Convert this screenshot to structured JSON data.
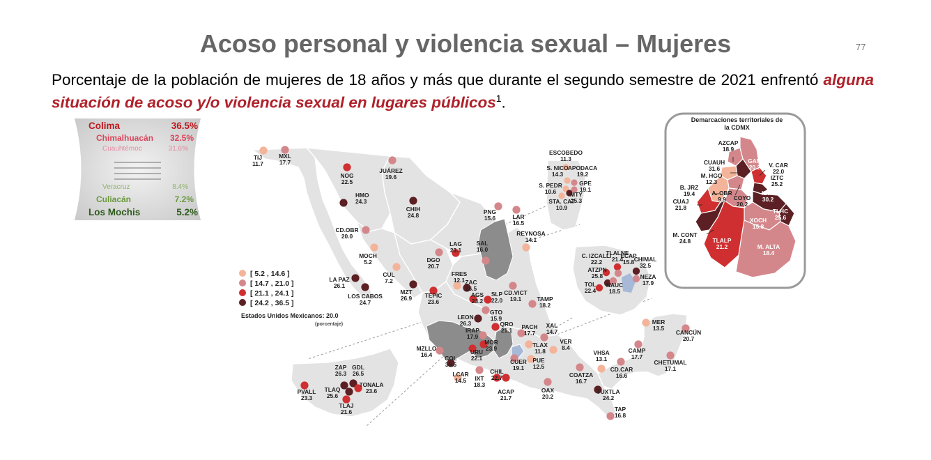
{
  "header": {
    "title": "Acoso personal y violencia sexual – Mujeres",
    "page_number": "77"
  },
  "subtitle": {
    "text_before": "Porcentaje de la población de mujeres de 18 años y más que durante el segundo semestre de 2021 enfrentó ",
    "emphasis": "alguna situación de acoso y/o violencia sexual en lugares públicos",
    "superscript": "1",
    "text_after": "."
  },
  "ranking": {
    "top": [
      {
        "name": "Colima",
        "value": "36.5%"
      },
      {
        "name": "Chimalhuacán",
        "value": "32.5%"
      },
      {
        "name": "Cuauhtémoc",
        "value": "31.6%"
      }
    ],
    "bottom": [
      {
        "name": "Veracruz",
        "value": "8.4%"
      },
      {
        "name": "Culiacán",
        "value": "7.2%"
      },
      {
        "name": "Los Mochis",
        "value": "5.2%"
      }
    ]
  },
  "legend": {
    "items": [
      {
        "label": "[   5.2 , 14.6 ]",
        "color": "#f3b49a"
      },
      {
        "label": "[ 14.7 , 21.0 ]",
        "color": "#d4878b"
      },
      {
        "label": "[ 21.1 , 24.1 ]",
        "color": "#cf2f30"
      },
      {
        "label": "[ 24.2 , 36.5 ]",
        "color": "#5c2024"
      }
    ],
    "national_label": "Estados Unidos Mexicanos:",
    "national_value": "20.0",
    "national_unit": "(porcentaje)"
  },
  "colors": {
    "land": "#e3e3e3",
    "shaded_region": "#8c8c8c",
    "highlight_region": "#a8b9d8",
    "class1": "#f3b49a",
    "class2": "#d4878b",
    "class3": "#cf2f30",
    "class4": "#5c2024"
  },
  "cities": [
    {
      "code": "TIJ",
      "value": "11.7",
      "class": 1
    },
    {
      "code": "MXL",
      "value": "17.7",
      "class": 2
    },
    {
      "code": "NOG",
      "value": "22.5",
      "class": 3
    },
    {
      "code": "JUÁREZ",
      "value": "19.6",
      "class": 2
    },
    {
      "code": "HMO",
      "value": "24.3",
      "class": 4
    },
    {
      "code": "CHIH",
      "value": "24.8",
      "class": 4
    },
    {
      "code": "CD.OBR",
      "value": "20.0",
      "class": 2
    },
    {
      "code": "MOCH",
      "value": "5.2",
      "class": 1
    },
    {
      "code": "CUL",
      "value": "7.2",
      "class": 1
    },
    {
      "code": "LA PAZ",
      "value": "26.1",
      "class": 4
    },
    {
      "code": "LOS CABOS",
      "value": "24.7",
      "class": 4
    },
    {
      "code": "MZT",
      "value": "26.9",
      "class": 4
    },
    {
      "code": "DGO",
      "value": "20.7",
      "class": 2
    },
    {
      "code": "LAG",
      "value": "23.1",
      "class": 3
    },
    {
      "code": "SAL",
      "value": "16.0",
      "class": 2
    },
    {
      "code": "PNG",
      "value": "15.6",
      "class": 2
    },
    {
      "code": "LAR",
      "value": "16.5",
      "class": 2
    },
    {
      "code": "REYNOSA",
      "value": "14.1",
      "class": 1
    },
    {
      "code": "FRES",
      "value": "12.1",
      "class": 1
    },
    {
      "code": "ZAC",
      "value": "26.5",
      "class": 4
    },
    {
      "code": "TEPIC",
      "value": "23.6",
      "class": 3
    },
    {
      "code": "AGS",
      "value": "23.2",
      "class": 3
    },
    {
      "code": "SLP",
      "value": "22.0",
      "class": 3
    },
    {
      "code": "CD.VICT",
      "value": "19.1",
      "class": 2
    },
    {
      "code": "TAMP",
      "value": "18.2",
      "class": 2
    },
    {
      "code": "LEON",
      "value": "26.3",
      "class": 4
    },
    {
      "code": "GTO",
      "value": "15.9",
      "class": 2
    },
    {
      "code": "QRO",
      "value": "21.1",
      "class": 3
    },
    {
      "code": "PACH",
      "value": "17.7",
      "class": 2
    },
    {
      "code": "XAL",
      "value": "14.7",
      "class": 2
    },
    {
      "code": "IRAP",
      "value": "17.9",
      "class": 2
    },
    {
      "code": "MZLLO",
      "value": "16.4",
      "class": 2
    },
    {
      "code": "URU",
      "value": "22.1",
      "class": 3
    },
    {
      "code": "MOR",
      "value": "23.9",
      "class": 3
    },
    {
      "code": "TLAX",
      "value": "11.8",
      "class": 1
    },
    {
      "code": "VER",
      "value": "8.4",
      "class": 1
    },
    {
      "code": "COL",
      "value": "36.5",
      "class": 4
    },
    {
      "code": "PUE",
      "value": "12.5",
      "class": 1
    },
    {
      "code": "CUER",
      "value": "19.1",
      "class": 2
    },
    {
      "code": "LCAR",
      "value": "14.5",
      "class": 1
    },
    {
      "code": "IXT",
      "value": "18.3",
      "class": 2
    },
    {
      "code": "CHIL",
      "value": "22.7",
      "class": 3
    },
    {
      "code": "ACAP",
      "value": "21.7",
      "class": 3
    },
    {
      "code": "OAX",
      "value": "20.2",
      "class": 2
    },
    {
      "code": "COATZA",
      "value": "16.7",
      "class": 2
    },
    {
      "code": "VHSA",
      "value": "13.1",
      "class": 1
    },
    {
      "code": "CD.CAR",
      "value": "16.6",
      "class": 2
    },
    {
      "code": "TUXTLA",
      "value": "24.2",
      "class": 4
    },
    {
      "code": "TAP",
      "value": "16.8",
      "class": 2
    },
    {
      "code": "CAMP",
      "value": "17.7",
      "class": 2
    },
    {
      "code": "MER",
      "value": "13.5",
      "class": 1
    },
    {
      "code": "CANCÚN",
      "value": "20.7",
      "class": 2
    },
    {
      "code": "CHETUMAL",
      "value": "17.1",
      "class": 2
    }
  ],
  "inset_monterrey": [
    {
      "code": "ESCOBEDO",
      "value": "11.3",
      "class": 1
    },
    {
      "code": "S. NICO",
      "value": "14.3",
      "class": 1
    },
    {
      "code": "APODACA",
      "value": "19.2",
      "class": 2
    },
    {
      "code": "GPE",
      "value": "19.1",
      "class": 2
    },
    {
      "code": "S. PEDR",
      "value": "10.6",
      "class": 1
    },
    {
      "code": "STA. CAT",
      "value": "10.9",
      "class": 1
    },
    {
      "code": "MTY",
      "value": "25.3",
      "class": 4
    }
  ],
  "inset_valle_mexico": [
    {
      "code": "TLALNE",
      "value": "21.4",
      "class": 3
    },
    {
      "code": "C. IZCALLI",
      "value": "22.2",
      "class": 3
    },
    {
      "code": "ECAP",
      "value": "15.8",
      "class": 2
    },
    {
      "code": "CHIMAL",
      "value": "32.5",
      "class": 4
    },
    {
      "code": "ATZPN",
      "value": "25.8",
      "class": 4
    },
    {
      "code": "NEZA",
      "value": "17.9",
      "class": 2
    },
    {
      "code": "TOL",
      "value": "22.4",
      "class": 3
    },
    {
      "code": "NAUC",
      "value": "18.5",
      "class": 2
    }
  ],
  "inset_guadalajara": [
    {
      "code": "ZAP",
      "value": "26.3",
      "class": 4
    },
    {
      "code": "GDL",
      "value": "26.5",
      "class": 4
    },
    {
      "code": "PVALL",
      "value": "23.3",
      "class": 3
    },
    {
      "code": "TLAQ",
      "value": "25.6",
      "class": 4
    },
    {
      "code": "TONALA",
      "value": "23.6",
      "class": 3
    },
    {
      "code": "TLAJ",
      "value": "21.6",
      "class": 3
    }
  ],
  "cdmx": {
    "title_line1": "Demarcaciones territoriales de",
    "title_line2": "la CDMX",
    "alcaldias": [
      {
        "code": "AZCAP",
        "value": "18.9",
        "class": 2
      },
      {
        "code": "GAM",
        "value": "20.2",
        "class": 2
      },
      {
        "code": "CUAUH",
        "value": "31.6",
        "class": 4
      },
      {
        "code": "V. CAR",
        "value": "22.0",
        "class": 3
      },
      {
        "code": "M. HGO",
        "value": "12.3",
        "class": 1
      },
      {
        "code": "IZTC",
        "value": "25.2",
        "class": 4
      },
      {
        "code": "B. JRZ",
        "value": "19.4",
        "class": 2
      },
      {
        "code": "A. OBR",
        "value": "9.9",
        "class": 1
      },
      {
        "code": "COYO",
        "value": "20.2",
        "class": 2
      },
      {
        "code": "IZTP",
        "value": "30.2",
        "class": 4
      },
      {
        "code": "CUAJ",
        "value": "21.8",
        "class": 3
      },
      {
        "code": "TLHC",
        "value": "25.6",
        "class": 4
      },
      {
        "code": "XOCH",
        "value": "15.8",
        "class": 2
      },
      {
        "code": "M. CONT",
        "value": "24.8",
        "class": 4
      },
      {
        "code": "TLALP",
        "value": "21.2",
        "class": 3
      },
      {
        "code": "M. ALTA",
        "value": "18.4",
        "class": 2
      }
    ]
  }
}
